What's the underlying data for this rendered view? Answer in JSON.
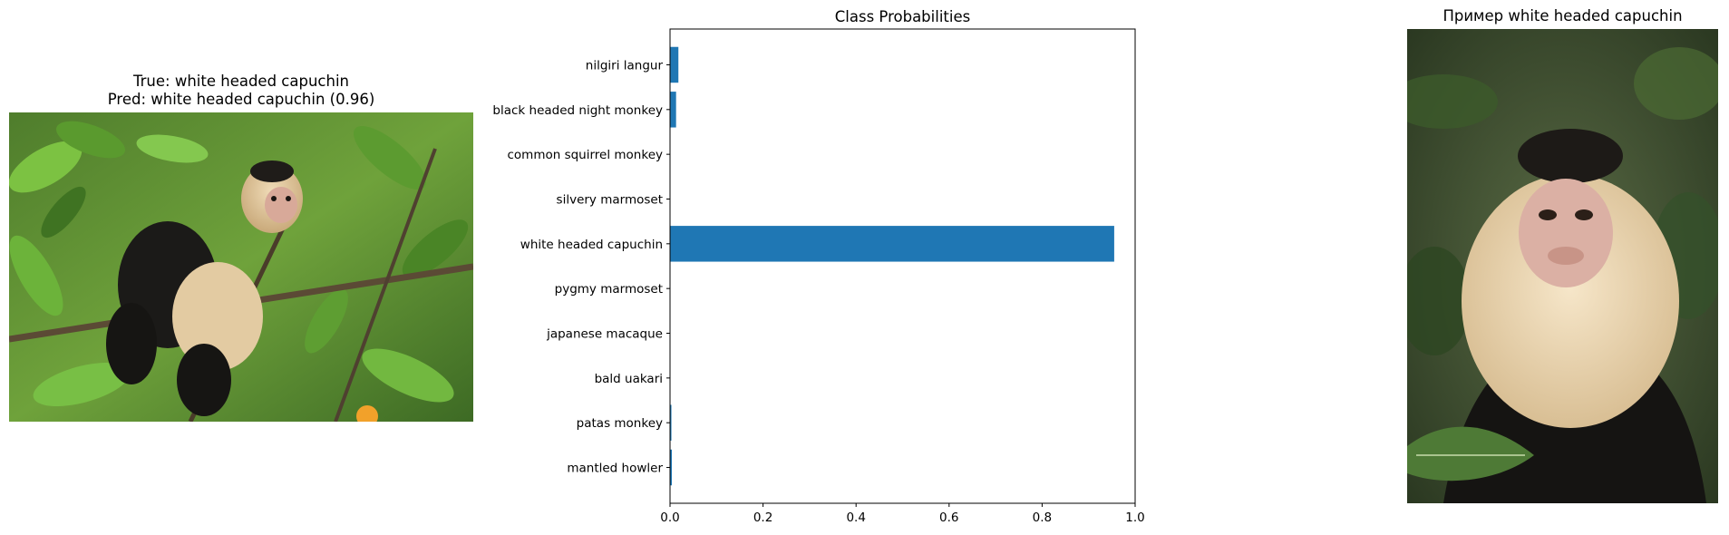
{
  "left_panel": {
    "title_line1": "True: white headed capuchin",
    "title_line2": "Pred: white headed capuchin (0.96)",
    "image_subject": "white-headed capuchin monkey on a branch among green leaves"
  },
  "right_panel": {
    "title": "Пример white headed capuchin",
    "image_subject": "portrait of a white-headed capuchin monkey with dark leafy background"
  },
  "chart_data": {
    "type": "bar",
    "orientation": "horizontal",
    "title": "Class Probabilities",
    "xlabel": "",
    "ylabel": "",
    "xlim": [
      0,
      1.0
    ],
    "xticks": [
      "0.0",
      "0.2",
      "0.4",
      "0.6",
      "0.8",
      "1.0"
    ],
    "xtick_values": [
      0,
      0.2,
      0.4,
      0.6,
      0.8,
      1.0
    ],
    "categories": [
      "nilgiri langur",
      "black headed night monkey",
      "common squirrel monkey",
      "silvery marmoset",
      "white headed capuchin",
      "pygmy marmoset",
      "japanese macaque",
      "bald uakari",
      "patas monkey",
      "mantled howler"
    ],
    "values": [
      0.018,
      0.013,
      0.0,
      0.0,
      0.955,
      0.0,
      0.0,
      0.0,
      0.003,
      0.004
    ],
    "bar_color": "#1f77b4",
    "grid": false,
    "legend": "none"
  }
}
